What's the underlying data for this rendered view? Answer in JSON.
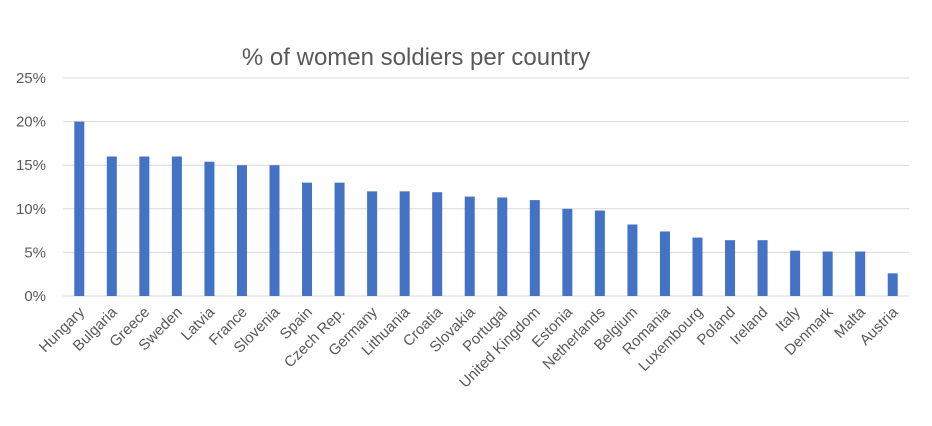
{
  "chart_data": {
    "type": "bar",
    "title": "% of women soldiers per country",
    "xlabel": "",
    "ylabel": "",
    "ylim": [
      0,
      25
    ],
    "y_ticks": [
      "0%",
      "5%",
      "10%",
      "15%",
      "20%",
      "25%"
    ],
    "grid": true,
    "legend": "none",
    "bar_color": "#4472c4",
    "categories": [
      "Hungary",
      "Bulgaria",
      "Greece",
      "Sweden",
      "Latvia",
      "France",
      "Slovenia",
      "Spain",
      "Czech Rep.",
      "Germany",
      "Lithuania",
      "Croatia",
      "Slovakia",
      "Portugal",
      "United Kingdom",
      "Estonia",
      "Netherlands",
      "Belgium",
      "Romania",
      "Luxembourg",
      "Poland",
      "Ireland",
      "Italy",
      "Denmark",
      "Malta",
      "Austria"
    ],
    "values": [
      20,
      16,
      16,
      16,
      15.4,
      15,
      15,
      13,
      13,
      12,
      12,
      11.9,
      11.4,
      11.3,
      11,
      10,
      9.8,
      8.2,
      7.4,
      6.7,
      6.4,
      6.4,
      5.2,
      5.1,
      5.1,
      2.6
    ]
  }
}
